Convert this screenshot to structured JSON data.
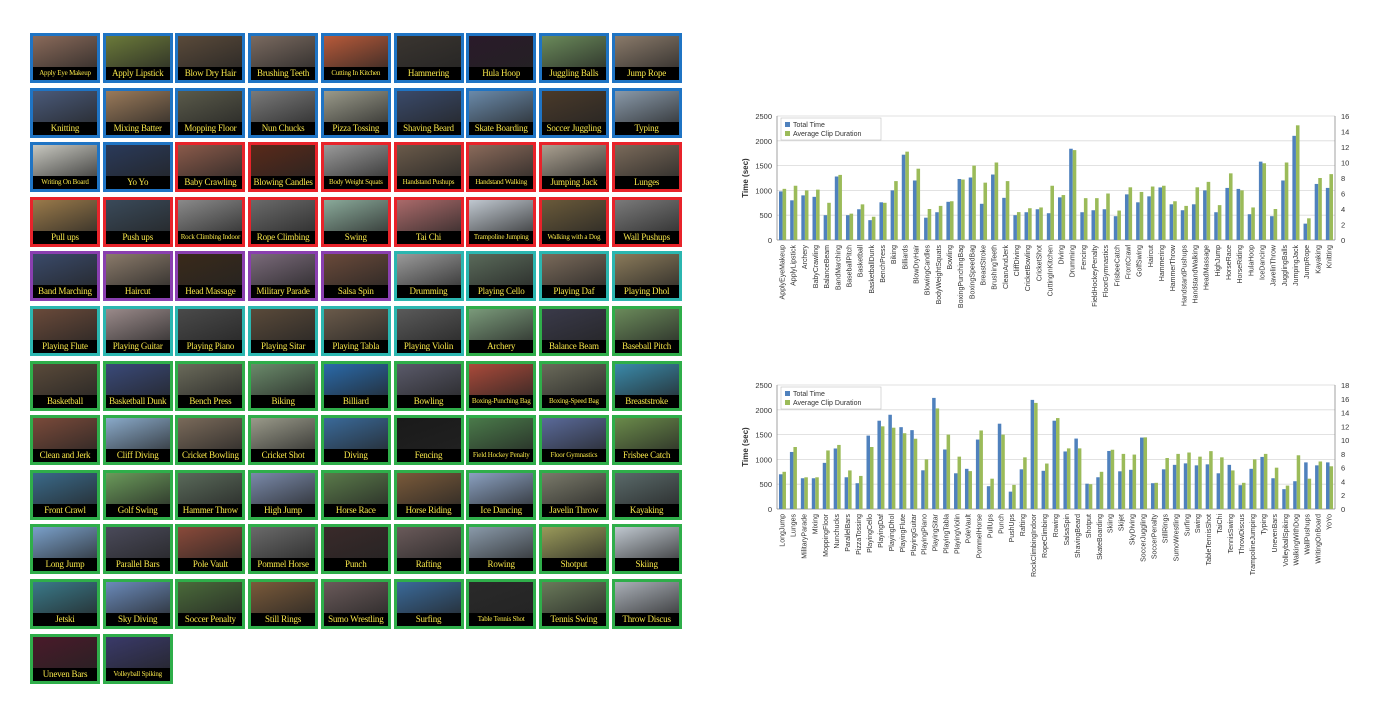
{
  "categories": [
    {
      "label": "Apply Eye Makeup",
      "group": "blue",
      "thumb": "#8a6a5a"
    },
    {
      "label": "Apply Lipstick",
      "group": "blue",
      "thumb": "#6b7a3a"
    },
    {
      "label": "Blow Dry Hair",
      "group": "blue",
      "thumb": "#5a4a3a"
    },
    {
      "label": "Brushing Teeth",
      "group": "blue",
      "thumb": "#7a6a60"
    },
    {
      "label": "Cutting In Kitchen",
      "group": "blue",
      "thumb": "#b85a3a"
    },
    {
      "label": "Hammering",
      "group": "blue",
      "thumb": "#3a3530"
    },
    {
      "label": "Hula Hoop",
      "group": "blue",
      "thumb": "#2a1a2a"
    },
    {
      "label": "Juggling Balls",
      "group": "blue",
      "thumb": "#6a8a5a"
    },
    {
      "label": "Jump Rope",
      "group": "blue",
      "thumb": "#8a7a6a"
    },
    {
      "label": "Knitting",
      "group": "blue",
      "thumb": "#4a5a7a"
    },
    {
      "label": "Mixing Batter",
      "group": "blue",
      "thumb": "#9a7a5a"
    },
    {
      "label": "Mopping Floor",
      "group": "blue",
      "thumb": "#5a5a4a"
    },
    {
      "label": "Nun Chucks",
      "group": "blue",
      "thumb": "#7a7a7a"
    },
    {
      "label": "Pizza Tossing",
      "group": "blue",
      "thumb": "#9a9a8a"
    },
    {
      "label": "Shaving Beard",
      "group": "blue",
      "thumb": "#3a4a6a"
    },
    {
      "label": "Skate Boarding",
      "group": "blue",
      "thumb": "#6a8aaa"
    },
    {
      "label": "Soccer Juggling",
      "group": "blue",
      "thumb": "#4a3a2a"
    },
    {
      "label": "Typing",
      "group": "blue",
      "thumb": "#8a9aaa"
    },
    {
      "label": "Writing On Board",
      "group": "blue",
      "thumb": "#c8c8c0"
    },
    {
      "label": "Yo Yo",
      "group": "blue",
      "thumb": "#2a3a5a"
    },
    {
      "label": "Baby Crawling",
      "group": "red",
      "thumb": "#8a5a4a"
    },
    {
      "label": "Blowing Candles",
      "group": "red",
      "thumb": "#5a2a1a"
    },
    {
      "label": "Body Weight Squats",
      "group": "red",
      "thumb": "#9a9a9a"
    },
    {
      "label": "Handstand Pushups",
      "group": "red",
      "thumb": "#6a5a4a"
    },
    {
      "label": "Handstand Walking",
      "group": "red",
      "thumb": "#8a6a5a"
    },
    {
      "label": "Jumping Jack",
      "group": "red",
      "thumb": "#aaa090"
    },
    {
      "label": "Lunges",
      "group": "red",
      "thumb": "#7a6a5a"
    },
    {
      "label": "Pull ups",
      "group": "red",
      "thumb": "#9a7a4a"
    },
    {
      "label": "Push ups",
      "group": "red",
      "thumb": "#3a4a5a"
    },
    {
      "label": "Rock Climbing Indoor",
      "group": "red",
      "thumb": "#8a8a8a"
    },
    {
      "label": "Rope Climbing",
      "group": "red",
      "thumb": "#6a6a6a"
    },
    {
      "label": "Swing",
      "group": "red",
      "thumb": "#8aaa9a"
    },
    {
      "label": "Tai Chi",
      "group": "red",
      "thumb": "#aa6a6a"
    },
    {
      "label": "Trampoline Jumping",
      "group": "red",
      "thumb": "#c0c8d0"
    },
    {
      "label": "Walking with a Dog",
      "group": "red",
      "thumb": "#6a5a3a"
    },
    {
      "label": "Wall Pushups",
      "group": "red",
      "thumb": "#7a7a7a"
    },
    {
      "label": "Band Marching",
      "group": "purple",
      "thumb": "#3a4a6a"
    },
    {
      "label": "Haircut",
      "group": "purple",
      "thumb": "#8a7a6a"
    },
    {
      "label": "Head Massage",
      "group": "purple",
      "thumb": "#3a2a1a"
    },
    {
      "label": "Military Parade",
      "group": "purple",
      "thumb": "#7a6a7a"
    },
    {
      "label": "Salsa Spin",
      "group": "purple",
      "thumb": "#6a4a3a"
    },
    {
      "label": "Drumming",
      "group": "teal",
      "thumb": "#9a9a9a"
    },
    {
      "label": "Playing Cello",
      "group": "teal",
      "thumb": "#5a6a5a"
    },
    {
      "label": "Playing Daf",
      "group": "teal",
      "thumb": "#7a6a5a"
    },
    {
      "label": "Playing Dhol",
      "group": "teal",
      "thumb": "#8a7a5a"
    },
    {
      "label": "Playing Flute",
      "group": "teal",
      "thumb": "#6a4a3a"
    },
    {
      "label": "Playing Guitar",
      "group": "teal",
      "thumb": "#9a8a8a"
    },
    {
      "label": "Playing Piano",
      "group": "teal",
      "thumb": "#4a4a4a"
    },
    {
      "label": "Playing Sitar",
      "group": "teal",
      "thumb": "#5a4a3a"
    },
    {
      "label": "Playing Tabla",
      "group": "teal",
      "thumb": "#6a5a4a"
    },
    {
      "label": "Playing Violin",
      "group": "teal",
      "thumb": "#5a5a5a"
    },
    {
      "label": "Archery",
      "group": "green",
      "thumb": "#7a9a7a"
    },
    {
      "label": "Balance Beam",
      "group": "green",
      "thumb": "#3a3a4a"
    },
    {
      "label": "Baseball Pitch",
      "group": "green",
      "thumb": "#6a8a5a"
    },
    {
      "label": "Basketball",
      "group": "green",
      "thumb": "#5a4a3a"
    },
    {
      "label": "Basketball Dunk",
      "group": "green",
      "thumb": "#3a4a7a"
    },
    {
      "label": "Bench Press",
      "group": "green",
      "thumb": "#6a6a5a"
    },
    {
      "label": "Biking",
      "group": "green",
      "thumb": "#6a8a6a"
    },
    {
      "label": "Billiard",
      "group": "green",
      "thumb": "#2a6aaa"
    },
    {
      "label": "Bowling",
      "group": "green",
      "thumb": "#5a5a6a"
    },
    {
      "label": "Boxing-Punching Bag",
      "group": "green",
      "thumb": "#aa4a3a"
    },
    {
      "label": "Boxing-Speed Bag",
      "group": "green",
      "thumb": "#6a6a5a"
    },
    {
      "label": "Breaststroke",
      "group": "green",
      "thumb": "#3a8aaa"
    },
    {
      "label": "Clean and Jerk",
      "group": "green",
      "thumb": "#7a4a3a"
    },
    {
      "label": "Cliff Diving",
      "group": "green",
      "thumb": "#8aaaca"
    },
    {
      "label": "Cricket Bowling",
      "group": "green",
      "thumb": "#7a6a5a"
    },
    {
      "label": "Cricket Shot",
      "group": "green",
      "thumb": "#9a9a8a"
    },
    {
      "label": "Diving",
      "group": "green",
      "thumb": "#3a6a9a"
    },
    {
      "label": "Fencing",
      "group": "green",
      "thumb": "#1a1a1a"
    },
    {
      "label": "Field Hockey Penalty",
      "group": "green",
      "thumb": "#4a7a4a"
    },
    {
      "label": "Floor Gymnastics",
      "group": "green",
      "thumb": "#5a6a9a"
    },
    {
      "label": "Frisbee Catch",
      "group": "green",
      "thumb": "#6a8a4a"
    },
    {
      "label": "Front Crawl",
      "group": "green",
      "thumb": "#3a6a8a"
    },
    {
      "label": "Golf Swing",
      "group": "green",
      "thumb": "#6a9a5a"
    },
    {
      "label": "Hammer Throw",
      "group": "green",
      "thumb": "#5a6a5a"
    },
    {
      "label": "High Jump",
      "group": "green",
      "thumb": "#7a8aaa"
    },
    {
      "label": "Horse Race",
      "group": "green",
      "thumb": "#5a7a4a"
    },
    {
      "label": "Horse Riding",
      "group": "green",
      "thumb": "#7a5a3a"
    },
    {
      "label": "Ice Dancing",
      "group": "green",
      "thumb": "#8aa0c0"
    },
    {
      "label": "Javelin Throw",
      "group": "green",
      "thumb": "#7a7a6a"
    },
    {
      "label": "Kayaking",
      "group": "green",
      "thumb": "#5a6a6a"
    },
    {
      "label": "Long Jump",
      "group": "green",
      "thumb": "#7aa0ca"
    },
    {
      "label": "Parallel Bars",
      "group": "green",
      "thumb": "#4a4a5a"
    },
    {
      "label": "Pole Vault",
      "group": "green",
      "thumb": "#8a4a3a"
    },
    {
      "label": "Pommel Horse",
      "group": "green",
      "thumb": "#6a6a6a"
    },
    {
      "label": "Punch",
      "group": "green",
      "thumb": "#3a2a2a"
    },
    {
      "label": "Rafting",
      "group": "green",
      "thumb": "#6a5a5a"
    },
    {
      "label": "Rowing",
      "group": "green",
      "thumb": "#8a9aaa"
    },
    {
      "label": "Shotput",
      "group": "green",
      "thumb": "#9a9a5a"
    },
    {
      "label": "Skiing",
      "group": "green",
      "thumb": "#c0c8d0"
    },
    {
      "label": "Jetski",
      "group": "green",
      "thumb": "#3a7a8a"
    },
    {
      "label": "Sky Diving",
      "group": "green",
      "thumb": "#6a8aba"
    },
    {
      "label": "Soccer Penalty",
      "group": "green",
      "thumb": "#4a6a3a"
    },
    {
      "label": "Still Rings",
      "group": "green",
      "thumb": "#7a5a3a"
    },
    {
      "label": "Sumo Wrestling",
      "group": "green",
      "thumb": "#6a5a5a"
    },
    {
      "label": "Surfing",
      "group": "green",
      "thumb": "#3a6a9a"
    },
    {
      "label": "Table Tennis Shot",
      "group": "green",
      "thumb": "#2a2a2a"
    },
    {
      "label": "Tennis Swing",
      "group": "green",
      "thumb": "#6a7a5a"
    },
    {
      "label": "Throw Discus",
      "group": "green",
      "thumb": "#aab0b8"
    },
    {
      "label": "Uneven Bars",
      "group": "green",
      "thumb": "#4a1a2a"
    },
    {
      "label": "Volleyball Spiking",
      "group": "green",
      "thumb": "#3a3a6a"
    }
  ],
  "group_colors": {
    "blue": "#1f74c4",
    "red": "#e8232a",
    "purple": "#8a3fb0",
    "teal": "#2bb6b0",
    "green": "#2fae4a"
  },
  "chart_data": [
    {
      "type": "bar",
      "ylabel": "Time (sec)",
      "ylim": [
        0,
        2500
      ],
      "ylim_right": [
        0,
        16
      ],
      "y_ticks": [
        0,
        500,
        1000,
        1500,
        2000,
        2500
      ],
      "y_ticks_right": [
        0,
        2,
        4,
        6,
        8,
        10,
        12,
        14,
        16
      ],
      "legend_position": "top-left",
      "series": [
        {
          "name": "Total Time",
          "color": "#4f81bd"
        },
        {
          "name": "Average Clip Duration",
          "color": "#9bbb59"
        }
      ],
      "categories": [
        "ApplyEyeMakeup",
        "ApplyLipstick",
        "Archery",
        "BabyCrawling",
        "BalanceBeam",
        "BandMarching",
        "BaseballPitch",
        "Basketball",
        "BasketballDunk",
        "BenchPress",
        "Biking",
        "Billiards",
        "BlowDryHair",
        "BlowingCandles",
        "BodyWeightSquats",
        "Bowling",
        "BoxingPunchingBag",
        "BoxingSpeedBag",
        "BreastStroke",
        "BrushingTeeth",
        "CleanAndJerk",
        "CliffDiving",
        "CricketBowling",
        "CricketShot",
        "CuttingInKitchen",
        "Diving",
        "Drumming",
        "Fencing",
        "FieldHockeyPenalty",
        "FloorGymnastics",
        "FrisbeeCatch",
        "FrontCrawl",
        "GolfSwing",
        "Haircut",
        "Hammering",
        "HammerThrow",
        "HandstandPushups",
        "HandstandWalking",
        "HeadMassage",
        "HighJump",
        "HorseRace",
        "HorseRiding",
        "HulaHoop",
        "IceDancing",
        "JavelinThrow",
        "JugglingBalls",
        "JumpingJack",
        "JumpRope",
        "Kayaking",
        "Knitting"
      ],
      "total_time": [
        980,
        800,
        900,
        870,
        500,
        1280,
        500,
        620,
        400,
        760,
        1000,
        1720,
        1200,
        450,
        560,
        770,
        1230,
        1260,
        730,
        1320,
        850,
        500,
        560,
        620,
        540,
        860,
        1840,
        560,
        600,
        620,
        480,
        920,
        760,
        880,
        1060,
        720,
        600,
        720,
        1000,
        560,
        1050,
        1030,
        520,
        1580,
        480,
        1200,
        2100,
        330,
        1130,
        1050
      ],
      "avg_duration": [
        6.6,
        7.0,
        6.4,
        6.5,
        4.8,
        8.4,
        3.4,
        4.6,
        3.0,
        4.8,
        7.6,
        11.4,
        9.2,
        4.0,
        4.4,
        5.0,
        7.8,
        9.6,
        7.4,
        10.0,
        7.6,
        3.6,
        4.1,
        4.2,
        7.0,
        5.8,
        11.6,
        5.4,
        5.4,
        6.0,
        3.8,
        6.8,
        6.2,
        6.9,
        7.0,
        5.0,
        4.4,
        6.8,
        7.5,
        4.5,
        8.6,
        6.4,
        4.2,
        9.9,
        4.0,
        10.0,
        14.8,
        2.8,
        8.0,
        8.5
      ]
    },
    {
      "type": "bar",
      "ylabel": "Time (sec)",
      "ylim": [
        0,
        2500
      ],
      "ylim_right": [
        0,
        18
      ],
      "y_ticks": [
        0,
        500,
        1000,
        1500,
        2000,
        2500
      ],
      "y_ticks_right": [
        0,
        2,
        4,
        6,
        8,
        10,
        12,
        14,
        16,
        18
      ],
      "legend_position": "top-left",
      "series": [
        {
          "name": "Total Time",
          "color": "#4f81bd"
        },
        {
          "name": "Average Clip Duration",
          "color": "#9bbb59"
        }
      ],
      "categories": [
        "LongJump",
        "Lunges",
        "MilitaryParade",
        "Mixing",
        "MoppingFloor",
        "Nunchucks",
        "ParallelBars",
        "PizzaTossing",
        "PlayingCello",
        "PlayingDaf",
        "PlayingDhol",
        "PlayingFlute",
        "PlayingGuitar",
        "PlayingPiano",
        "PlayingSitar",
        "PlayingTabla",
        "PlayingViolin",
        "PoleVault",
        "PommelHorse",
        "PullUps",
        "Punch",
        "PushUps",
        "Rafting",
        "RockClimbingIndoor",
        "RopeClimbing",
        "Rowing",
        "SalsaSpin",
        "ShavingBeard",
        "Shotput",
        "SkateBoarding",
        "Skiing",
        "Skijet",
        "SkyDiving",
        "SoccerJuggling",
        "SoccerPenalty",
        "StillRings",
        "SumoWrestling",
        "Surfing",
        "Swing",
        "TableTennisShot",
        "TaiChi",
        "TennisSwing",
        "ThrowDiscus",
        "TrampolineJumping",
        "Typing",
        "UnevenBars",
        "VolleyballSpiking",
        "WalkingWithDog",
        "WallPushups",
        "WritingOnBoard",
        "YoYo"
      ],
      "total_time": [
        700,
        1150,
        620,
        620,
        930,
        1220,
        640,
        520,
        1480,
        1780,
        1900,
        1650,
        1590,
        780,
        2240,
        1200,
        720,
        810,
        1400,
        460,
        1720,
        350,
        800,
        2200,
        770,
        1780,
        1160,
        1420,
        510,
        640,
        1170,
        760,
        790,
        1440,
        520,
        800,
        890,
        920,
        880,
        900,
        720,
        890,
        480,
        810,
        1050,
        620,
        400,
        560,
        940,
        880,
        940
      ],
      "avg_duration": [
        5.4,
        9.0,
        4.6,
        4.6,
        8.5,
        9.3,
        5.6,
        4.8,
        9.0,
        12.0,
        11.8,
        11.0,
        10.2,
        7.2,
        14.6,
        10.8,
        7.6,
        5.5,
        11.4,
        4.4,
        10.8,
        3.5,
        7.5,
        15.4,
        6.6,
        13.2,
        8.8,
        8.8,
        3.6,
        5.4,
        8.6,
        8.0,
        7.9,
        10.4,
        3.8,
        7.4,
        8.0,
        8.2,
        7.6,
        8.4,
        7.5,
        5.6,
        3.8,
        7.2,
        8.0,
        6.0,
        3.4,
        7.8,
        4.4,
        6.9,
        6.2
      ]
    }
  ]
}
